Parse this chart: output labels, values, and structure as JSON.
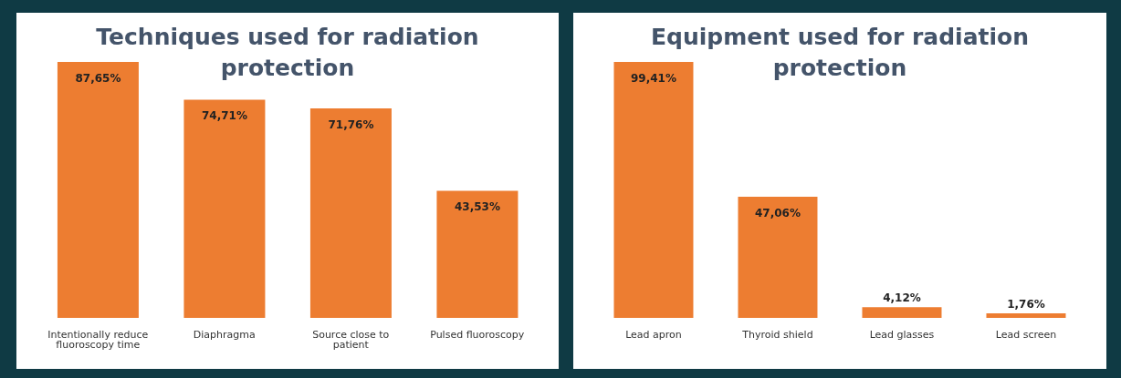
{
  "chart_data": [
    {
      "type": "bar",
      "title": "Techniques used for radiation protection",
      "categories": [
        "Intentionally reduce fluoroscopy time",
        "Diaphragma",
        "Source close to patient",
        "Pulsed fluoroscopy"
      ],
      "values": [
        87.65,
        74.71,
        71.76,
        43.53
      ],
      "color": "#ed7d31",
      "value_labels": [
        "87,65%",
        "74,71%",
        "71,76%",
        "43,53%"
      ],
      "grid": false,
      "legend": false
    },
    {
      "type": "bar",
      "title": "Equipment used for radiation protection",
      "categories": [
        "Lead apron",
        "Thyroid shield",
        "Lead glasses",
        "Lead screen"
      ],
      "values": [
        99.41,
        47.06,
        4.12,
        1.76
      ],
      "color": "#ed7d31",
      "value_labels": [
        "99,41%",
        "47,06%",
        "4,12%",
        "1,76%"
      ],
      "grid": false,
      "legend": false
    }
  ]
}
